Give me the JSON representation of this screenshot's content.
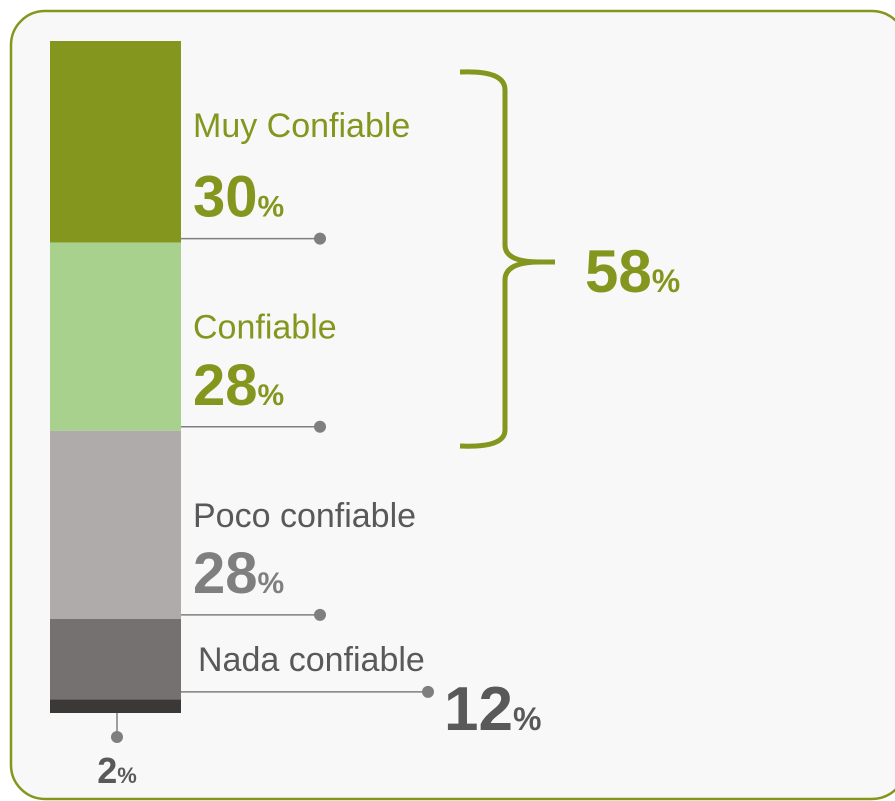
{
  "chart_data": {
    "type": "stacked_bar",
    "categories": [
      "Muy Confiable",
      "Confiable",
      "Poco confiable",
      "Nada confiable",
      null
    ],
    "values": [
      30,
      28,
      28,
      12,
      2
    ],
    "value_labels": [
      "30%",
      "28%",
      "28%",
      "12%",
      "2%"
    ],
    "colors": [
      "#84961e",
      "#a9d18e",
      "#afabab",
      "#767171",
      "#3b3838"
    ],
    "label_colors": [
      "#84961e",
      "#84961e",
      "#7f7f7f",
      "#595959",
      "#595959"
    ],
    "ylim": [
      0,
      100
    ],
    "annotation": "58%"
  }
}
